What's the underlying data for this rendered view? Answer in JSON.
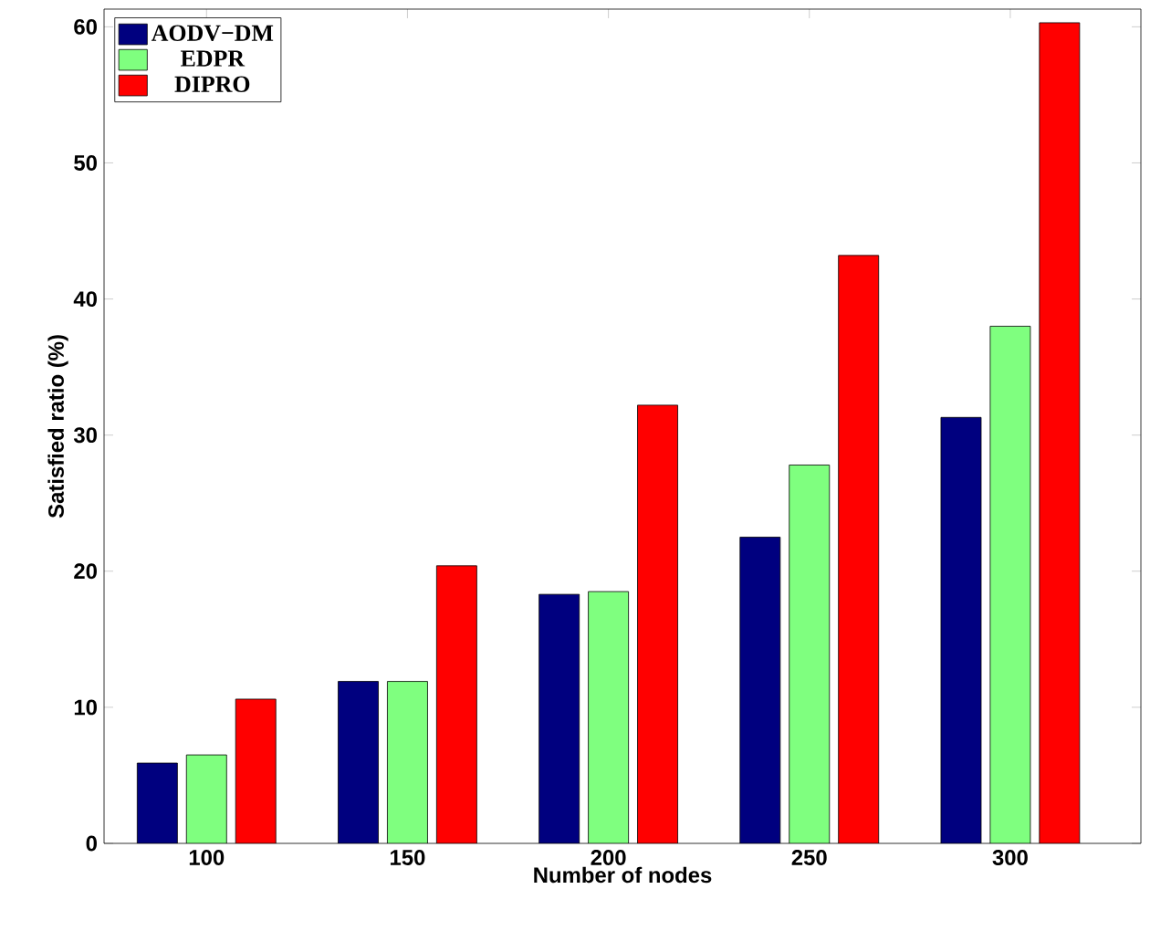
{
  "chart_data": {
    "type": "bar",
    "xlabel": "Number of nodes",
    "ylabel": "Satisfied ratio (%)",
    "categories": [
      "100",
      "150",
      "200",
      "250",
      "300"
    ],
    "series": [
      {
        "name": "AODV−DM",
        "color": "#00007f",
        "values": [
          5.9,
          11.9,
          18.3,
          22.5,
          31.3
        ]
      },
      {
        "name": "EDPR",
        "color": "#7fff7f",
        "values": [
          6.5,
          11.9,
          18.5,
          27.8,
          38.0
        ]
      },
      {
        "name": "DIPRO",
        "color": "#ff0000",
        "values": [
          10.6,
          20.4,
          32.2,
          43.2,
          60.3
        ]
      }
    ],
    "ylim": [
      0,
      61.3
    ],
    "yticks": [
      0,
      10,
      20,
      30,
      40,
      50,
      60
    ],
    "grid": false,
    "legend": "top left"
  }
}
